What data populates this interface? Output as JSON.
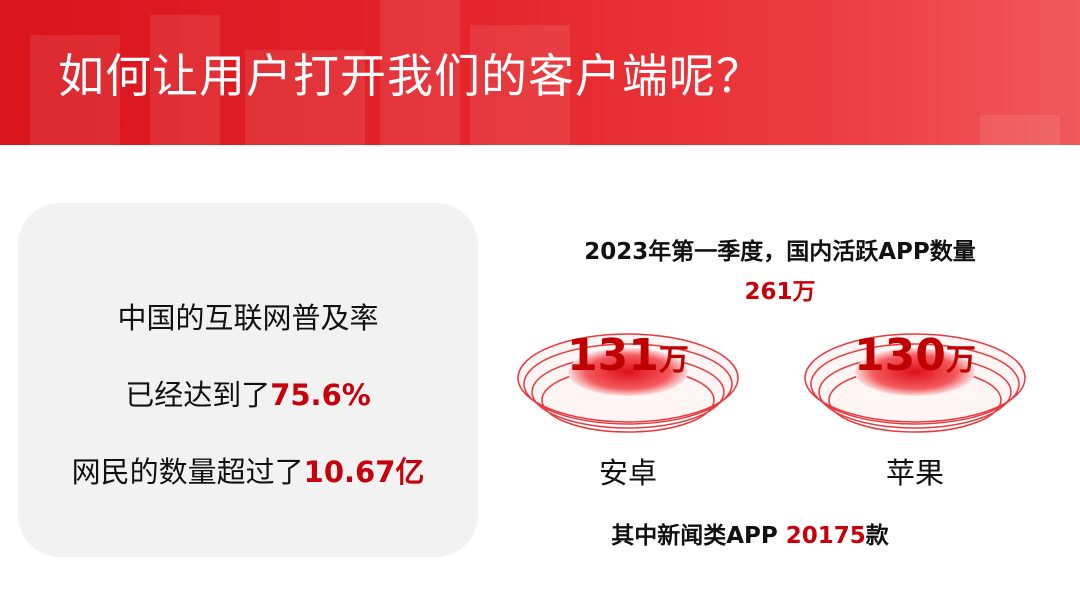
{
  "header": {
    "title": "如何让用户打开我们的客户端呢？"
  },
  "left_panel": {
    "lines": [
      {
        "text": "中国的互联网普及率"
      },
      {
        "text": "已经达到了",
        "highlight": "75.6%"
      },
      {
        "text": "网民的数量超过了",
        "highlight": "10.67亿"
      }
    ]
  },
  "right_panel": {
    "heading": "2023年第一季度，国内活跃APP数量",
    "total": "261万",
    "platforms": [
      {
        "count": "131",
        "unit": "万",
        "label": "安卓"
      },
      {
        "count": "130",
        "unit": "万",
        "label": "苹果"
      }
    ],
    "footnote": {
      "text": "其中新闻类APP",
      "highlight": "20175",
      "suffix": "款"
    }
  }
}
